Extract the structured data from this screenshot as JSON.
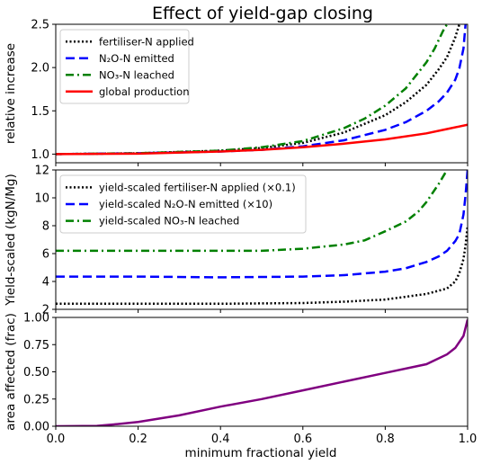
{
  "title": "Effect of yield-gap closing",
  "xlabel": "minimum fractional yield",
  "chart_data": [
    {
      "type": "line",
      "ylabel": "relative increase",
      "xlim": [
        0.0,
        1.0
      ],
      "ylim": [
        0.9,
        2.5
      ],
      "yticks": [
        1.0,
        1.5,
        2.0,
        2.5
      ],
      "xticks": [],
      "legend_position": "top-left",
      "series": [
        {
          "key": "fert",
          "name": "fertiliser-N applied",
          "color": "#000000",
          "style": "dotted",
          "x": [
            0,
            0.2,
            0.4,
            0.5,
            0.6,
            0.7,
            0.8,
            0.85,
            0.9,
            0.93,
            0.95,
            0.97,
            0.98
          ],
          "y": [
            1.0,
            1.01,
            1.04,
            1.07,
            1.13,
            1.25,
            1.45,
            1.6,
            1.8,
            1.98,
            2.12,
            2.35,
            2.5
          ]
        },
        {
          "key": "n2o",
          "name": "N₂O-N emitted",
          "color": "#0000ff",
          "style": "dashed",
          "x": [
            0,
            0.2,
            0.4,
            0.5,
            0.6,
            0.7,
            0.8,
            0.85,
            0.9,
            0.93,
            0.95,
            0.97,
            0.98,
            0.99,
            0.995
          ],
          "y": [
            1.0,
            1.01,
            1.03,
            1.05,
            1.09,
            1.16,
            1.28,
            1.37,
            1.5,
            1.61,
            1.71,
            1.86,
            1.99,
            2.22,
            2.5
          ]
        },
        {
          "key": "no3",
          "name": "NO₃-N leached",
          "color": "#008000",
          "style": "dashdot",
          "x": [
            0,
            0.2,
            0.4,
            0.5,
            0.6,
            0.7,
            0.75,
            0.8,
            0.85,
            0.9,
            0.92,
            0.94,
            0.95
          ],
          "y": [
            1.0,
            1.01,
            1.04,
            1.08,
            1.15,
            1.3,
            1.41,
            1.56,
            1.76,
            2.06,
            2.22,
            2.42,
            2.5
          ]
        },
        {
          "key": "prod",
          "name": "global production",
          "color": "#ff0000",
          "style": "solid",
          "x": [
            0,
            0.2,
            0.4,
            0.5,
            0.6,
            0.7,
            0.8,
            0.9,
            0.95,
            1.0
          ],
          "y": [
            1.0,
            1.005,
            1.03,
            1.05,
            1.08,
            1.12,
            1.17,
            1.24,
            1.29,
            1.34
          ]
        }
      ]
    },
    {
      "type": "line",
      "ylabel": "Yield-scaled (kgN/Mg)",
      "xlim": [
        0.0,
        1.0
      ],
      "ylim": [
        2,
        12
      ],
      "yticks": [
        2,
        4,
        6,
        8,
        10,
        12
      ],
      "xticks": [],
      "legend_position": "top-left",
      "series": [
        {
          "key": "ys_fert",
          "name": "yield-scaled fertiliser-N applied (×0.1)",
          "color": "#000000",
          "style": "dotted",
          "x": [
            0,
            0.2,
            0.4,
            0.6,
            0.7,
            0.8,
            0.9,
            0.95,
            0.97,
            0.98,
            0.99,
            0.995,
            1.0
          ],
          "y": [
            2.4,
            2.4,
            2.4,
            2.45,
            2.55,
            2.7,
            3.1,
            3.5,
            4.0,
            4.6,
            5.6,
            6.6,
            8.0
          ]
        },
        {
          "key": "ys_n2o",
          "name": "yield-scaled N₂O-N emitted (×10)",
          "color": "#0000ff",
          "style": "dashed",
          "x": [
            0,
            0.2,
            0.4,
            0.6,
            0.7,
            0.8,
            0.85,
            0.9,
            0.93,
            0.95,
            0.97,
            0.98,
            0.99,
            0.995,
            1.0
          ],
          "y": [
            4.35,
            4.35,
            4.3,
            4.35,
            4.45,
            4.7,
            4.95,
            5.4,
            5.8,
            6.2,
            6.9,
            7.4,
            8.8,
            10.2,
            12.0
          ]
        },
        {
          "key": "ys_no3",
          "name": "yield-scaled NO₃-N leached",
          "color": "#008000",
          "style": "dashdot",
          "x": [
            0,
            0.2,
            0.4,
            0.5,
            0.6,
            0.7,
            0.75,
            0.8,
            0.85,
            0.88,
            0.9,
            0.93,
            0.95
          ],
          "y": [
            6.2,
            6.2,
            6.2,
            6.2,
            6.35,
            6.65,
            6.95,
            7.6,
            8.3,
            9.0,
            9.7,
            11.0,
            12.0
          ]
        }
      ]
    },
    {
      "type": "line",
      "ylabel": "area affected (frac)",
      "xlim": [
        0.0,
        1.0
      ],
      "ylim": [
        0.0,
        1.0
      ],
      "yticks": [
        0.0,
        0.25,
        0.5,
        0.75,
        1.0
      ],
      "xticks": [
        0.0,
        0.2,
        0.4,
        0.6,
        0.8,
        1.0
      ],
      "series": [
        {
          "key": "area",
          "name": "",
          "color": "#800080",
          "style": "solid",
          "x": [
            0,
            0.1,
            0.15,
            0.2,
            0.3,
            0.4,
            0.5,
            0.6,
            0.7,
            0.8,
            0.9,
            0.95,
            0.97,
            0.99,
            1.0
          ],
          "y": [
            0.0,
            0.003,
            0.02,
            0.04,
            0.1,
            0.18,
            0.25,
            0.33,
            0.41,
            0.49,
            0.57,
            0.66,
            0.72,
            0.83,
            0.98
          ]
        }
      ]
    }
  ]
}
